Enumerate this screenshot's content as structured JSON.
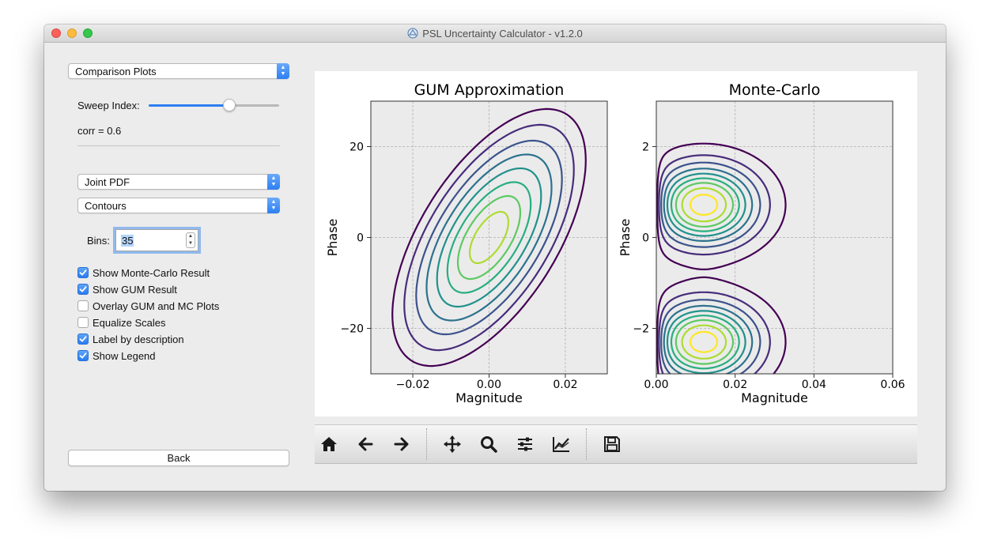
{
  "window": {
    "title": "PSL Uncertainty Calculator - v1.2.0",
    "app_icon": "psl-logo-icon"
  },
  "left_panel": {
    "mode_select": {
      "value": "Comparison Plots"
    },
    "sweep": {
      "label": "Sweep Index:",
      "position_fraction": 0.62
    },
    "corr_text": "corr = 0.6",
    "plot_type_select": {
      "value": "Joint PDF"
    },
    "style_select": {
      "value": "Contours"
    },
    "bins": {
      "label": "Bins:",
      "value": "35"
    },
    "checkboxes": [
      {
        "label": "Show Monte-Carlo Result",
        "checked": true
      },
      {
        "label": "Show GUM Result",
        "checked": true
      },
      {
        "label": "Overlay GUM and MC Plots",
        "checked": false
      },
      {
        "label": "Equalize Scales",
        "checked": false
      },
      {
        "label": "Label by description",
        "checked": true
      },
      {
        "label": "Show Legend",
        "checked": true
      }
    ],
    "back_button": "Back"
  },
  "colors": {
    "accent": "#2d7ef2",
    "plot_bg": "#ebebeb",
    "grid": "#b0b0b0"
  },
  "chart_data": [
    {
      "type": "contour",
      "title": "GUM Approximation",
      "xlabel": "Magnitude",
      "ylabel": "Phase",
      "xlim": [
        -0.031,
        0.031
      ],
      "ylim": [
        -30,
        30
      ],
      "xticks": [
        "−0.02",
        "0.00",
        "0.02"
      ],
      "xtick_values": [
        -0.02,
        0.0,
        0.02
      ],
      "yticks": [
        "−20",
        "0",
        "20"
      ],
      "ytick_values": [
        -20,
        0,
        20
      ],
      "grid": true,
      "distribution": {
        "mean": [
          0.0,
          0.0
        ],
        "sx": 0.0078,
        "sy": 8.7,
        "corr": 0.6
      },
      "contour_levels_mahalanobis": [
        3.25,
        2.85,
        2.45,
        2.1,
        1.75,
        1.4,
        1.05,
        0.65
      ],
      "colors": [
        "#440154",
        "#472d7b",
        "#3b528b",
        "#2c728e",
        "#21918c",
        "#28ae80",
        "#5ec962",
        "#addc30",
        "#fde725"
      ]
    },
    {
      "type": "contour",
      "title": "Monte-Carlo",
      "xlabel": "Magnitude",
      "ylabel": "Phase",
      "xlim": [
        0.0,
        0.06
      ],
      "ylim": [
        -3.0,
        3.0
      ],
      "xticks": [
        "0.00",
        "0.02",
        "0.04",
        "0.06"
      ],
      "xtick_values": [
        0.0,
        0.02,
        0.04,
        0.06
      ],
      "yticks": [
        "−2",
        "0",
        "2"
      ],
      "ytick_values": [
        -2,
        0,
        2
      ],
      "grid": true,
      "peaks": [
        {
          "x": 0.012,
          "y": 0.72
        },
        {
          "x": 0.012,
          "y": -2.3
        }
      ],
      "outer_contour_max_x": 0.035,
      "colors": [
        "#440154",
        "#472d7b",
        "#3b528b",
        "#2c728e",
        "#21918c",
        "#28ae80",
        "#5ec962",
        "#addc30",
        "#fde725"
      ]
    }
  ],
  "toolbar": {
    "buttons": [
      {
        "name": "home-icon",
        "tooltip": "Home"
      },
      {
        "name": "back-arrow-icon",
        "tooltip": "Back"
      },
      {
        "name": "forward-arrow-icon",
        "tooltip": "Forward"
      },
      {
        "name": "pan-icon",
        "tooltip": "Pan"
      },
      {
        "name": "zoom-icon",
        "tooltip": "Zoom"
      },
      {
        "name": "subplots-icon",
        "tooltip": "Subplots"
      },
      {
        "name": "customize-icon",
        "tooltip": "Customize"
      },
      {
        "name": "save-icon",
        "tooltip": "Save"
      }
    ]
  }
}
